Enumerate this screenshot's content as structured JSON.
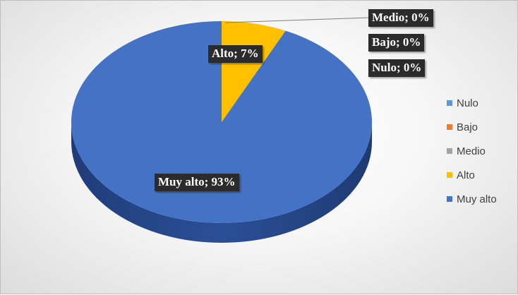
{
  "chart_data": {
    "type": "pie",
    "style": "3d",
    "title": "",
    "categories": [
      "Nulo",
      "Bajo",
      "Medio",
      "Alto",
      "Muy alto"
    ],
    "values": [
      0,
      0,
      0,
      7,
      93
    ],
    "unit": "%",
    "colors": [
      "#5b9bd5",
      "#ed7d31",
      "#a5a5a5",
      "#ffc000",
      "#4472c4"
    ],
    "data_labels": [
      "Nulo; 0%",
      "Bajo; 0%",
      "Medio; 0%",
      "Alto; 7%",
      "Muy alto; 93%"
    ],
    "legend_position": "right",
    "legend": [
      "Nulo",
      "Bajo",
      "Medio",
      "Alto",
      "Muy alto"
    ]
  }
}
